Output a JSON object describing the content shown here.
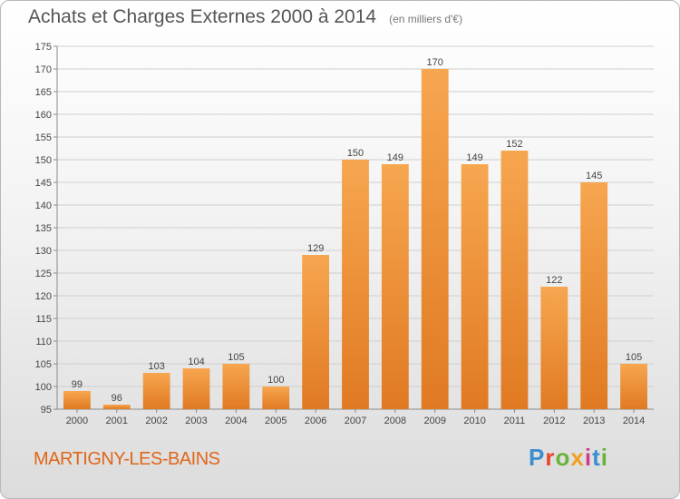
{
  "header": {
    "title": "Achats et Charges Externes 2000 à 2014",
    "unit": "(en milliers d'€)"
  },
  "footer": {
    "location": "MARTIGNY-LES-BAINS",
    "brand": "Proxiti",
    "brand_colors": [
      "#3a8fd0",
      "#e8452c",
      "#6ab23a",
      "#f0a020",
      "#d13a8a",
      "#3a8fd0",
      "#6ab23a"
    ]
  },
  "colors": {
    "bar_light": "#f7a650",
    "bar_dark": "#e07a22",
    "grid": "#cfcfcf",
    "axis": "#8a8a8a",
    "label": "#444444"
  },
  "chart_data": {
    "type": "bar",
    "categories": [
      "2000",
      "2001",
      "2002",
      "2003",
      "2004",
      "2005",
      "2006",
      "2007",
      "2008",
      "2009",
      "2010",
      "2011",
      "2012",
      "2013",
      "2014"
    ],
    "values": [
      99,
      96,
      103,
      104,
      105,
      100,
      129,
      150,
      149,
      170,
      149,
      152,
      122,
      145,
      105
    ],
    "ylim": [
      95,
      175
    ],
    "yticks": [
      95,
      100,
      105,
      110,
      115,
      120,
      125,
      130,
      135,
      140,
      145,
      150,
      155,
      160,
      165,
      170,
      175
    ],
    "grid": true,
    "data_labels": true
  }
}
